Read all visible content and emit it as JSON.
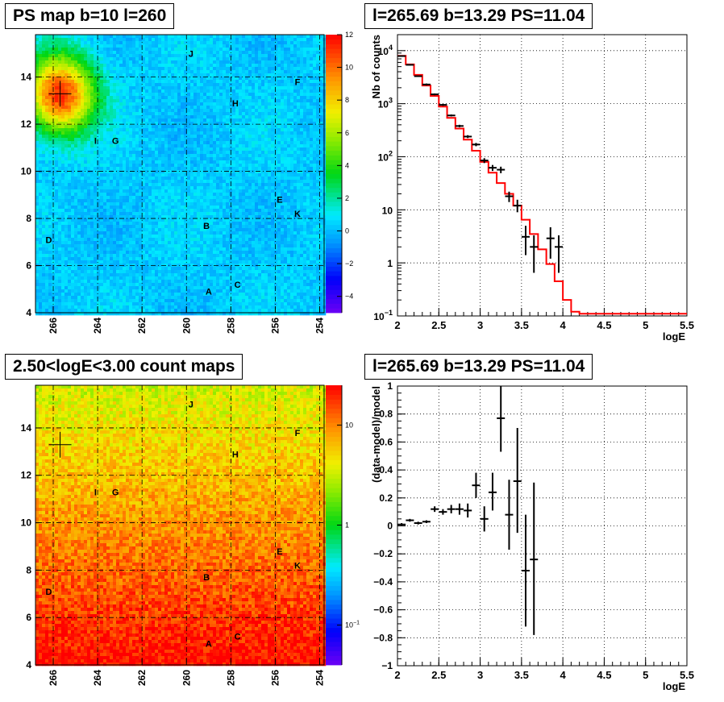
{
  "chart_data": [
    {
      "type": "heatmap",
      "title": "PS map b=10 l=260",
      "x_ticks": [
        "266",
        "264",
        "262",
        "260",
        "258",
        "256",
        "254"
      ],
      "y_ticks": [
        "4",
        "6",
        "8",
        "10",
        "12",
        "14"
      ],
      "xlim": [
        266.8,
        253.8
      ],
      "ylim": [
        4,
        15.8
      ],
      "colorbar": {
        "range": [
          -5,
          12
        ],
        "ticks": [
          "−4",
          "−2",
          "0",
          "2",
          "4",
          "6",
          "8",
          "10",
          "12"
        ]
      },
      "grid": true,
      "crosshair": [
        265.69,
        13.29
      ],
      "sources": [
        {
          "name": "J",
          "l": 259.8,
          "b": 15.0
        },
        {
          "name": "F",
          "l": 255.0,
          "b": 13.8
        },
        {
          "name": "H",
          "l": 257.8,
          "b": 12.9
        },
        {
          "name": "I",
          "l": 264.1,
          "b": 11.3
        },
        {
          "name": "G",
          "l": 263.2,
          "b": 11.3
        },
        {
          "name": "E",
          "l": 255.8,
          "b": 8.8
        },
        {
          "name": "K",
          "l": 255.0,
          "b": 8.2
        },
        {
          "name": "B",
          "l": 259.1,
          "b": 7.7
        },
        {
          "name": "D",
          "l": 266.2,
          "b": 7.1
        },
        {
          "name": "C",
          "l": 257.7,
          "b": 5.2
        },
        {
          "name": "A",
          "l": 259.0,
          "b": 4.9
        }
      ]
    },
    {
      "type": "line",
      "title": "l=265.69 b=13.29 PS=11.04",
      "xlabel": "logE",
      "ylabel": "Nb of counts",
      "xlim": [
        2,
        5.5
      ],
      "ylim": [
        0.1,
        20000
      ],
      "log_y": true,
      "x_ticks": [
        "2",
        "2.5",
        "3",
        "3.5",
        "4",
        "4.5",
        "5",
        "5.5"
      ],
      "y_ticks": [
        {
          "v": 0.1,
          "base": "10",
          "exp": "−1"
        },
        {
          "v": 1,
          "base": "1",
          "exp": ""
        },
        {
          "v": 10,
          "base": "10",
          "exp": ""
        },
        {
          "v": 100,
          "base": "10",
          "exp": "2"
        },
        {
          "v": 1000,
          "base": "10",
          "exp": "3"
        },
        {
          "v": 10000,
          "base": "10",
          "exp": "4"
        }
      ],
      "grid": true,
      "model_color": "#ff0000",
      "model": [
        {
          "x": 2.0,
          "y": 8000
        },
        {
          "x": 2.1,
          "y": 5500
        },
        {
          "x": 2.2,
          "y": 3500
        },
        {
          "x": 2.3,
          "y": 2200
        },
        {
          "x": 2.4,
          "y": 1400
        },
        {
          "x": 2.5,
          "y": 880
        },
        {
          "x": 2.6,
          "y": 540
        },
        {
          "x": 2.7,
          "y": 340
        },
        {
          "x": 2.8,
          "y": 210
        },
        {
          "x": 2.9,
          "y": 130
        },
        {
          "x": 3.0,
          "y": 80
        },
        {
          "x": 3.1,
          "y": 50
        },
        {
          "x": 3.2,
          "y": 32
        },
        {
          "x": 3.3,
          "y": 20
        },
        {
          "x": 3.4,
          "y": 12
        },
        {
          "x": 3.5,
          "y": 6.5
        },
        {
          "x": 3.6,
          "y": 3.5
        },
        {
          "x": 3.7,
          "y": 1.8
        },
        {
          "x": 3.8,
          "y": 0.95
        },
        {
          "x": 3.9,
          "y": 0.45
        },
        {
          "x": 4.0,
          "y": 0.2
        },
        {
          "x": 4.1,
          "y": 0.12
        },
        {
          "x": 4.2,
          "y": 0.11
        },
        {
          "x": 5.5,
          "y": 0.11
        }
      ],
      "data": [
        {
          "x": 2.05,
          "y": 7900,
          "lo": 7700,
          "hi": 8100
        },
        {
          "x": 2.15,
          "y": 5400,
          "lo": 5250,
          "hi": 5550
        },
        {
          "x": 2.25,
          "y": 3300,
          "lo": 3200,
          "hi": 3400
        },
        {
          "x": 2.35,
          "y": 2300,
          "lo": 2200,
          "hi": 2400
        },
        {
          "x": 2.45,
          "y": 1500,
          "lo": 1440,
          "hi": 1560
        },
        {
          "x": 2.55,
          "y": 950,
          "lo": 910,
          "hi": 990
        },
        {
          "x": 2.65,
          "y": 600,
          "lo": 575,
          "hi": 625
        },
        {
          "x": 2.75,
          "y": 380,
          "lo": 360,
          "hi": 400
        },
        {
          "x": 2.85,
          "y": 240,
          "lo": 225,
          "hi": 255
        },
        {
          "x": 2.95,
          "y": 170,
          "lo": 158,
          "hi": 182
        },
        {
          "x": 3.05,
          "y": 85,
          "lo": 76,
          "hi": 94
        },
        {
          "x": 3.15,
          "y": 62,
          "lo": 54,
          "hi": 70
        },
        {
          "x": 3.25,
          "y": 57,
          "lo": 49,
          "hi": 65
        },
        {
          "x": 3.35,
          "y": 18,
          "lo": 14,
          "hi": 22
        },
        {
          "x": 3.45,
          "y": 12,
          "lo": 9,
          "hi": 15.5
        },
        {
          "x": 3.55,
          "y": 3.1,
          "lo": 1.4,
          "hi": 5
        },
        {
          "x": 3.65,
          "y": 2.0,
          "lo": 0.65,
          "hi": 3.3
        },
        {
          "x": 3.85,
          "y": 2.9,
          "lo": 1.2,
          "hi": 4.7
        },
        {
          "x": 3.95,
          "y": 2.0,
          "lo": 0.65,
          "hi": 3.3
        }
      ]
    },
    {
      "type": "heatmap",
      "title": "2.50<logE<3.00 count maps",
      "x_ticks": [
        "266",
        "264",
        "262",
        "260",
        "258",
        "256",
        "254"
      ],
      "y_ticks": [
        "4",
        "6",
        "8",
        "10",
        "12",
        "14"
      ],
      "xlim": [
        266.8,
        253.8
      ],
      "ylim": [
        4,
        15.8
      ],
      "log_color": true,
      "colorbar": {
        "range": [
          0.04,
          25
        ],
        "ticks": [
          {
            "v": 0.1,
            "base": "10",
            "exp": "−1"
          },
          {
            "v": 1,
            "base": "1",
            "exp": ""
          },
          {
            "v": 10,
            "base": "10",
            "exp": ""
          }
        ]
      },
      "grid": true,
      "crosshair": [
        265.69,
        13.29
      ],
      "sources": [
        {
          "name": "J",
          "l": 259.8,
          "b": 15.0
        },
        {
          "name": "F",
          "l": 255.0,
          "b": 13.8
        },
        {
          "name": "H",
          "l": 257.8,
          "b": 12.9
        },
        {
          "name": "I",
          "l": 264.1,
          "b": 11.3
        },
        {
          "name": "G",
          "l": 263.2,
          "b": 11.3
        },
        {
          "name": "E",
          "l": 255.8,
          "b": 8.8
        },
        {
          "name": "K",
          "l": 255.0,
          "b": 8.2
        },
        {
          "name": "B",
          "l": 259.1,
          "b": 7.7
        },
        {
          "name": "D",
          "l": 266.2,
          "b": 7.1
        },
        {
          "name": "C",
          "l": 257.7,
          "b": 5.2
        },
        {
          "name": "A",
          "l": 259.0,
          "b": 4.9
        }
      ]
    },
    {
      "type": "scatter",
      "title": "l=265.69 b=13.29 PS=11.04",
      "xlabel": "logE",
      "ylabel": "(data-model)/model",
      "xlim": [
        2,
        5.5
      ],
      "ylim": [
        -1,
        1
      ],
      "x_ticks": [
        "2",
        "2.5",
        "3",
        "3.5",
        "4",
        "4.5",
        "5",
        "5.5"
      ],
      "y_ticks": [
        "−1",
        "−0.8",
        "−0.6",
        "−0.4",
        "−0.2",
        "0",
        "0.2",
        "0.4",
        "0.6",
        "0.8",
        "1"
      ],
      "grid": true,
      "data": [
        {
          "x": 2.05,
          "y": 0.01,
          "lo": 0.0,
          "hi": 0.02
        },
        {
          "x": 2.15,
          "y": 0.04,
          "lo": 0.03,
          "hi": 0.05
        },
        {
          "x": 2.25,
          "y": 0.02,
          "lo": 0.01,
          "hi": 0.03
        },
        {
          "x": 2.35,
          "y": 0.03,
          "lo": 0.02,
          "hi": 0.04
        },
        {
          "x": 2.45,
          "y": 0.12,
          "lo": 0.1,
          "hi": 0.14
        },
        {
          "x": 2.55,
          "y": 0.1,
          "lo": 0.08,
          "hi": 0.12
        },
        {
          "x": 2.65,
          "y": 0.12,
          "lo": 0.09,
          "hi": 0.15
        },
        {
          "x": 2.75,
          "y": 0.12,
          "lo": 0.08,
          "hi": 0.16
        },
        {
          "x": 2.85,
          "y": 0.11,
          "lo": 0.06,
          "hi": 0.16
        },
        {
          "x": 2.95,
          "y": 0.29,
          "lo": 0.2,
          "hi": 0.38
        },
        {
          "x": 3.05,
          "y": 0.05,
          "lo": -0.04,
          "hi": 0.14
        },
        {
          "x": 3.15,
          "y": 0.24,
          "lo": 0.11,
          "hi": 0.38
        },
        {
          "x": 3.25,
          "y": 0.77,
          "lo": 0.53,
          "hi": 1.0
        },
        {
          "x": 3.35,
          "y": 0.08,
          "lo": -0.17,
          "hi": 0.33
        },
        {
          "x": 3.45,
          "y": 0.32,
          "lo": -0.05,
          "hi": 0.7
        },
        {
          "x": 3.55,
          "y": -0.32,
          "lo": -0.72,
          "hi": 0.08
        },
        {
          "x": 3.65,
          "y": -0.24,
          "lo": -0.78,
          "hi": 0.31
        }
      ]
    }
  ]
}
